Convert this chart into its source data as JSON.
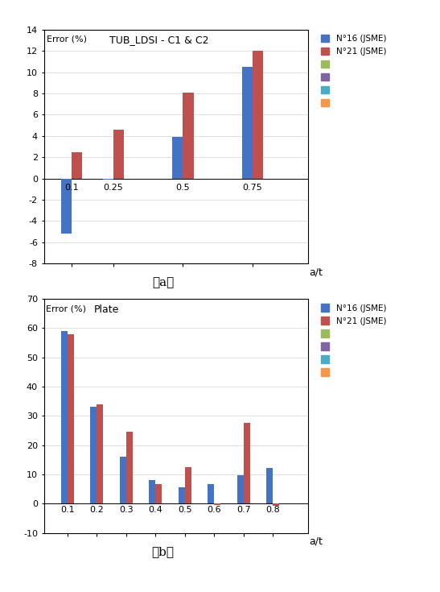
{
  "chart_a": {
    "title": "TUB_LDSI - C1 & C2",
    "ylabel": "Error (%)",
    "xlabel": "a/t",
    "categories": [
      0.1,
      0.25,
      0.5,
      0.75
    ],
    "n16_values": [
      -5.2,
      -0.1,
      3.9,
      10.5
    ],
    "n21_values": [
      2.5,
      4.6,
      8.1,
      12.0
    ],
    "ylim": [
      -8,
      14
    ],
    "yticks": [
      -8,
      -6,
      -4,
      -2,
      0,
      2,
      4,
      6,
      8,
      10,
      12,
      14
    ],
    "xlim": [
      0.0,
      0.95
    ],
    "bar_color_n16": "#4472C4",
    "bar_color_n21": "#C0504D",
    "bar_width": 0.038
  },
  "chart_b": {
    "title": "Plate",
    "ylabel": "Error (%)",
    "xlabel": "a/t",
    "categories": [
      0.1,
      0.2,
      0.3,
      0.4,
      0.5,
      0.6,
      0.7,
      0.8
    ],
    "n16_values": [
      59.0,
      33.0,
      16.0,
      8.0,
      5.5,
      6.8,
      9.8,
      12.2
    ],
    "n21_values": [
      58.0,
      34.0,
      24.5,
      6.8,
      12.5,
      -0.5,
      27.5,
      -0.8
    ],
    "ylim": [
      -10,
      70
    ],
    "yticks": [
      -10,
      0,
      10,
      20,
      30,
      40,
      50,
      60,
      70
    ],
    "xlim": [
      0.02,
      0.92
    ],
    "bar_color_n16": "#4472C4",
    "bar_color_n21": "#C0504D",
    "bar_width": 0.022
  },
  "legend_extra": [
    {
      "color": "#9BBB59",
      "label": ""
    },
    {
      "color": "#8064A2",
      "label": ""
    },
    {
      "color": "#4BACC6",
      "label": ""
    },
    {
      "color": "#F79646",
      "label": ""
    }
  ],
  "background_color": "#FFFFFF",
  "label_a": "（a）",
  "label_b": "（b）"
}
